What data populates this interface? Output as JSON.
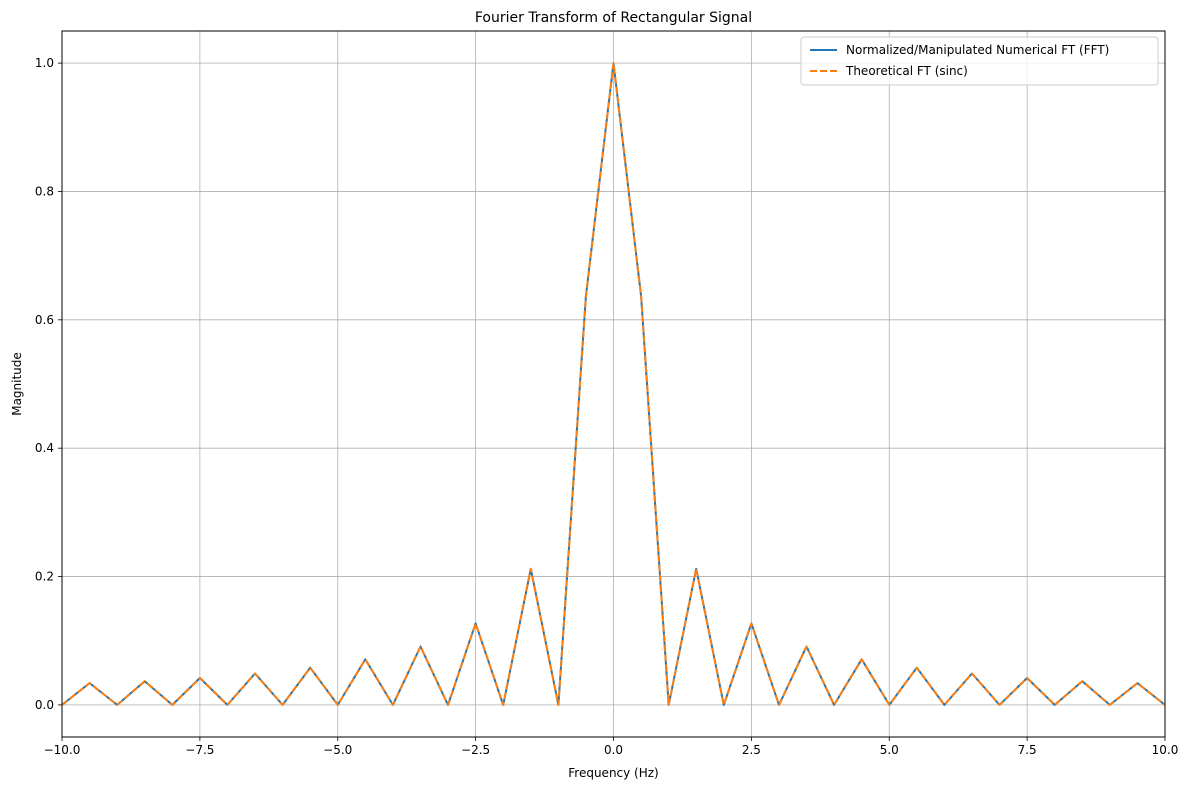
{
  "chart_data": {
    "type": "line",
    "title": "Fourier Transform of Rectangular Signal",
    "xlabel": "Frequency (Hz)",
    "ylabel": "Magnitude",
    "xlim": [
      -10,
      10
    ],
    "ylim": [
      -0.05,
      1.05
    ],
    "xticks": [
      -10,
      -7.5,
      -5,
      -2.5,
      0,
      2.5,
      5,
      7.5,
      10
    ],
    "xtick_labels": [
      "−10.0",
      "−7.5",
      "−5.0",
      "−2.5",
      "0.0",
      "2.5",
      "5.0",
      "7.5",
      "10.0"
    ],
    "yticks": [
      0,
      0.2,
      0.4,
      0.6,
      0.8,
      1.0
    ],
    "ytick_labels": [
      "0.0",
      "0.2",
      "0.4",
      "0.6",
      "0.8",
      "1.0"
    ],
    "grid": true,
    "legend_position": "top-right",
    "x": [
      -10,
      -9.5,
      -9,
      -8.5,
      -8,
      -7.5,
      -7,
      -6.5,
      -6,
      -5.5,
      -5,
      -4.5,
      -4,
      -3.5,
      -3,
      -2.5,
      -2,
      -1.5,
      -1,
      -0.5,
      0,
      0.5,
      1,
      1.5,
      2,
      2.5,
      3,
      3.5,
      4,
      4.5,
      5,
      5.5,
      6,
      6.5,
      7,
      7.5,
      8,
      8.5,
      9,
      9.5,
      10
    ],
    "series": [
      {
        "name": "Normalized/Manipulated Numerical FT (FFT)",
        "color": "#1f77b4",
        "style": "solid",
        "values": [
          0,
          0.034,
          0,
          0.037,
          0,
          0.042,
          0,
          0.049,
          0,
          0.058,
          0,
          0.071,
          0,
          0.091,
          0,
          0.127,
          0,
          0.212,
          0,
          0.637,
          1.0,
          0.637,
          0,
          0.212,
          0,
          0.127,
          0,
          0.091,
          0,
          0.071,
          0,
          0.058,
          0,
          0.049,
          0,
          0.042,
          0,
          0.037,
          0,
          0.034,
          0
        ]
      },
      {
        "name": "Theoretical FT (sinc)",
        "color": "#ff7f0e",
        "style": "dashed",
        "values": [
          0,
          0.034,
          0,
          0.037,
          0,
          0.042,
          0,
          0.049,
          0,
          0.058,
          0,
          0.071,
          0,
          0.091,
          0,
          0.127,
          0,
          0.212,
          0,
          0.637,
          1.0,
          0.637,
          0,
          0.212,
          0,
          0.127,
          0,
          0.091,
          0,
          0.071,
          0,
          0.058,
          0,
          0.049,
          0,
          0.042,
          0,
          0.037,
          0,
          0.034,
          0
        ]
      }
    ]
  }
}
